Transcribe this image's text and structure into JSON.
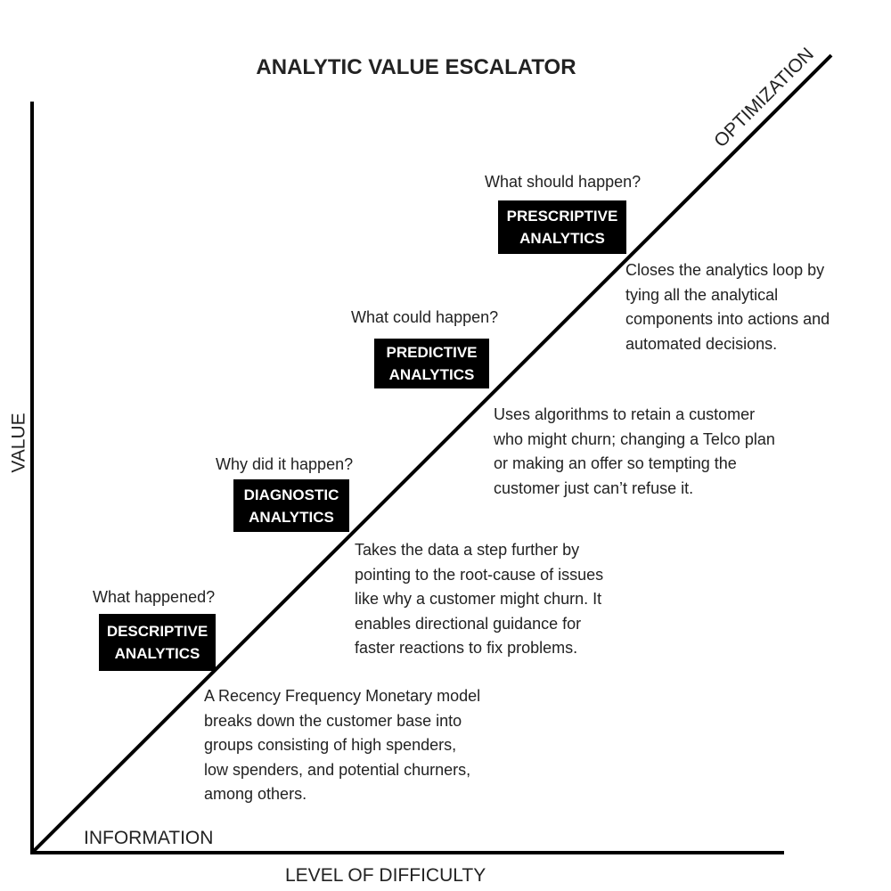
{
  "title": "ANALYTIC VALUE ESCALATOR",
  "axes": {
    "y_label": "VALUE",
    "x_label": "LEVEL OF DIFFICULTY",
    "start_label": "INFORMATION",
    "end_label": "OPTIMIZATION"
  },
  "stages": [
    {
      "question": "What happened?",
      "box_line1": "DESCRIPTIVE",
      "box_line2": "ANALYTICS",
      "description": [
        "A Recency Frequency Monetary model",
        "breaks down the customer base into",
        "groups consisting of high spenders,",
        "low spenders, and potential churners,",
        "among others."
      ]
    },
    {
      "question": "Why did it happen?",
      "box_line1": "DIAGNOSTIC",
      "box_line2": "ANALYTICS",
      "description": [
        "Takes the data a step further by",
        "pointing to the root-cause of issues",
        "like why a customer might churn. It",
        "enables directional guidance for",
        "faster reactions to fix problems."
      ]
    },
    {
      "question": "What could happen?",
      "box_line1": "PREDICTIVE",
      "box_line2": "ANALYTICS",
      "description": [
        "Uses algorithms to retain a customer",
        "who might churn; changing a Telco plan",
        "or making an offer so tempting the",
        "customer just can’t refuse it."
      ]
    },
    {
      "question": "What should happen?",
      "box_line1": "PRESCRIPTIVE",
      "box_line2": "ANALYTICS",
      "description": [
        "Closes the analytics loop by",
        "tying all the analytical",
        "components into actions and",
        "automated decisions."
      ]
    }
  ]
}
